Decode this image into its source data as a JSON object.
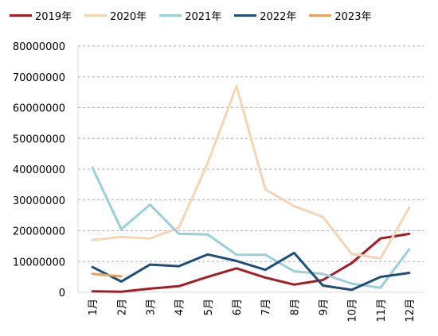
{
  "chart_data": {
    "type": "line",
    "categories": [
      "1月",
      "2月",
      "3月",
      "4月",
      "5月",
      "6月",
      "7月",
      "8月",
      "9月",
      "10月",
      "11月",
      "12月"
    ],
    "ylim": [
      0,
      80000000
    ],
    "yticks": [
      "0",
      "10000000",
      "20000000",
      "30000000",
      "40000000",
      "50000000",
      "60000000",
      "70000000",
      "80000000"
    ],
    "grid": true,
    "legend_position": "top",
    "series": [
      {
        "name": "2019年",
        "color": "#a51c24",
        "values": [
          300000,
          200000,
          1200000,
          2000000,
          5000000,
          7800000,
          4800000,
          2500000,
          4000000,
          9500000,
          17500000,
          19000000
        ]
      },
      {
        "name": "2020年",
        "color": "#f6d5b6",
        "values": [
          17000000,
          18000000,
          17500000,
          21000000,
          42000000,
          67000000,
          33500000,
          28000000,
          24500000,
          12500000,
          11000000,
          27500000
        ]
      },
      {
        "name": "2021年",
        "color": "#9ccfda",
        "values": [
          40500000,
          20500000,
          28500000,
          19000000,
          18800000,
          12200000,
          12200000,
          6800000,
          6000000,
          2800000,
          1500000,
          14000000
        ]
      },
      {
        "name": "2022年",
        "color": "#1f4e79",
        "values": [
          8200000,
          3500000,
          9000000,
          8500000,
          12300000,
          10200000,
          7300000,
          12800000,
          2200000,
          800000,
          5000000,
          6300000
        ]
      },
      {
        "name": "2023年",
        "color": "#e9a060",
        "values": [
          6000000,
          5200000,
          null,
          null,
          null,
          null,
          null,
          null,
          null,
          null,
          null,
          null
        ]
      }
    ]
  }
}
